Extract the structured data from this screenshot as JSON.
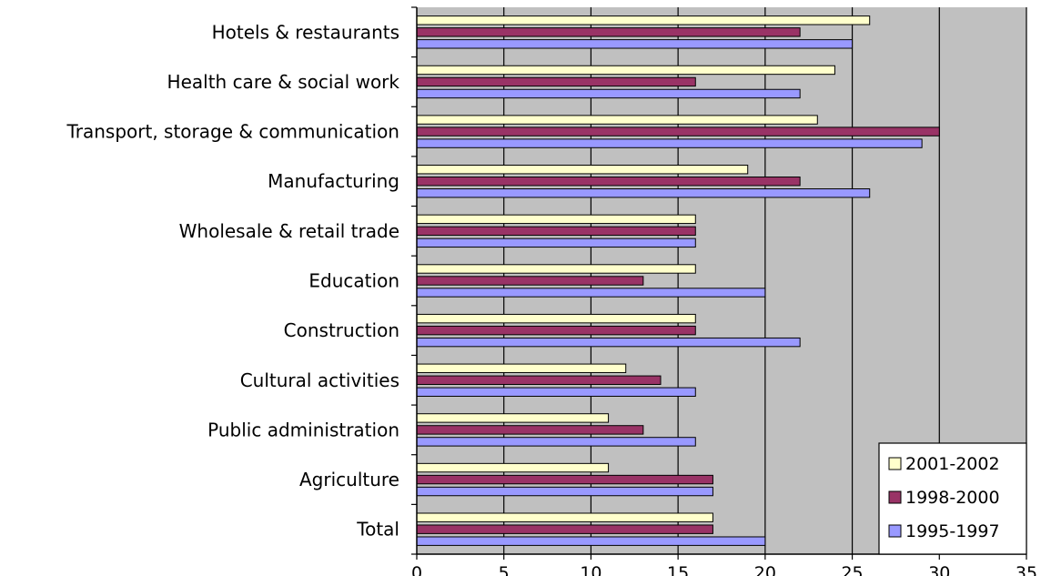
{
  "chart_data": {
    "type": "bar",
    "orientation": "horizontal",
    "title": "",
    "xlabel": "",
    "ylabel": "",
    "categories": [
      "Hotels & restaurants",
      "Health care & social work",
      "Transport, storage & communication",
      "Manufacturing",
      "Wholesale & retail trade",
      "Education",
      "Construction",
      "Cultural activities",
      "Public administration",
      "Agriculture",
      "Total"
    ],
    "series": [
      {
        "name": "2001-2002",
        "color": "#ffffcc",
        "values": [
          26,
          24,
          23,
          19,
          16,
          16,
          16,
          12,
          11,
          11,
          17
        ]
      },
      {
        "name": "1998-2000",
        "color": "#993366",
        "values": [
          22,
          16,
          30,
          22,
          16,
          13,
          16,
          14,
          13,
          17,
          17
        ]
      },
      {
        "name": "1995-1997",
        "color": "#9999ff",
        "values": [
          25,
          22,
          29,
          26,
          16,
          20,
          22,
          16,
          16,
          17,
          20
        ]
      }
    ],
    "xlim": [
      0,
      35
    ],
    "xticks": [
      0,
      5,
      10,
      15,
      20,
      25,
      30,
      35
    ],
    "plot_background": "#c0c0c0",
    "gridlines": "vertical",
    "legend_position": "bottom-right"
  }
}
